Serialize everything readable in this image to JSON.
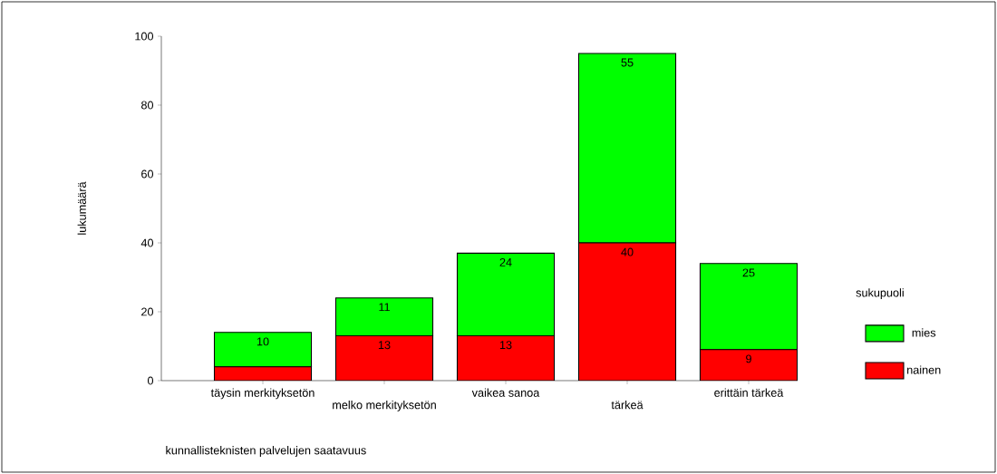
{
  "chart_data": {
    "type": "bar",
    "stacked": true,
    "xlabel": "kunnallisteknisten palvelujen saatavuus",
    "ylabel": "lukumäärä",
    "legend_title": "sukupuoli",
    "categories": [
      "täysin merkityksetön",
      "melko merkityksetön",
      "vaikea sanoa",
      "tärkeä",
      "erittäin tärkeä"
    ],
    "series": [
      {
        "name": "nainen",
        "color": "#ff0000",
        "values": [
          4,
          13,
          13,
          40,
          9
        ],
        "value_labels": [
          null,
          "13",
          "13",
          "40",
          "9"
        ]
      },
      {
        "name": "mies",
        "color": "#00ff00",
        "values": [
          10,
          11,
          24,
          55,
          25
        ],
        "value_labels": [
          "10",
          "11",
          "24",
          "55",
          "25"
        ]
      }
    ],
    "ylim": [
      0,
      100
    ],
    "yticks": [
      0,
      20,
      40,
      60,
      80,
      100
    ],
    "legend": "right",
    "grid": false
  }
}
